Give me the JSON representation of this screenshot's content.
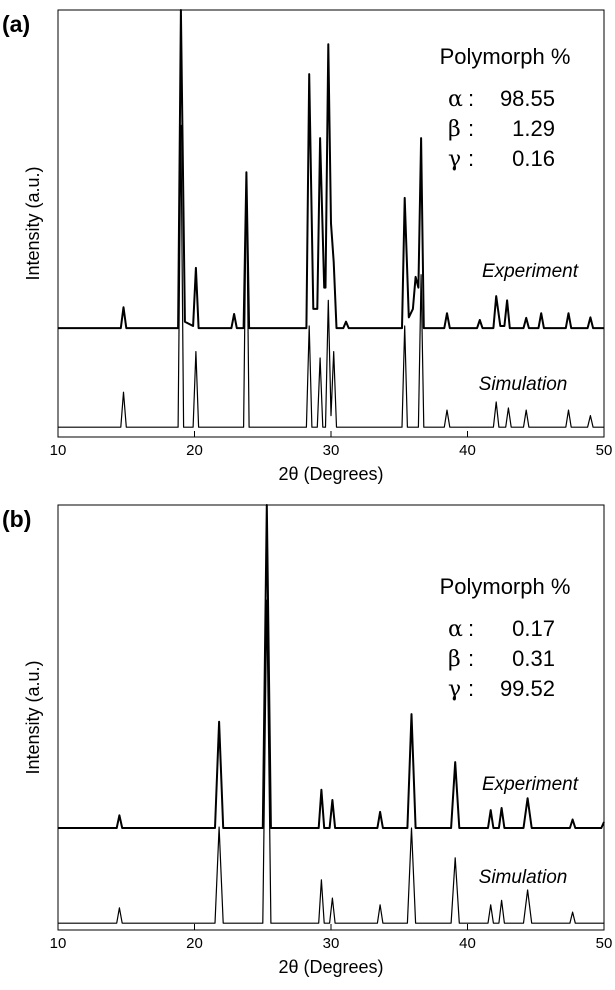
{
  "chart_data": [
    {
      "type": "line",
      "panel_label": "(a)",
      "xlabel": "2θ (Degrees)",
      "ylabel": "Intensity (a.u.)",
      "xlim": [
        10,
        50
      ],
      "xticks": [
        10,
        20,
        30,
        40,
        50
      ],
      "ylim": [
        0,
        100
      ],
      "annotation": {
        "title": "Polymorph %",
        "rows": [
          {
            "symbol": "α",
            "value": 98.55
          },
          {
            "symbol": "β",
            "value": 1.29
          },
          {
            "symbol": "γ",
            "value": 0.16
          }
        ]
      },
      "series": [
        {
          "name": "Experiment",
          "color": "#000000",
          "x": [
            10,
            14.6,
            14.8,
            15.0,
            18.8,
            19.0,
            19.3,
            19.9,
            20.1,
            20.3,
            22.7,
            22.9,
            23.1,
            23.6,
            23.8,
            24.0,
            28.2,
            28.4,
            28.7,
            29.0,
            29.2,
            29.5,
            29.6,
            29.8,
            30.0,
            30.2,
            30.4,
            30.9,
            31.1,
            31.3,
            35.2,
            35.4,
            35.7,
            36.0,
            36.2,
            36.4,
            36.6,
            36.8,
            38.3,
            38.5,
            38.7,
            40.7,
            40.9,
            41.1,
            41.9,
            42.1,
            42.4,
            42.7,
            42.9,
            43.1,
            44.1,
            44.3,
            44.5,
            45.2,
            45.4,
            45.6,
            47.2,
            47.4,
            47.6,
            48.8,
            49.0,
            49.2,
            50
          ],
          "values": [
            25.5,
            25.5,
            30.4,
            25.5,
            25.5,
            100,
            27,
            26,
            39.6,
            25.5,
            25.5,
            28.8,
            25.5,
            25.5,
            62,
            25.5,
            25.5,
            85,
            30,
            30,
            70,
            35,
            35,
            92,
            50,
            41,
            25.5,
            25.5,
            27,
            25.5,
            25.5,
            56,
            28,
            30,
            37.5,
            35,
            70,
            25.5,
            25.5,
            29,
            25.5,
            25.5,
            27.4,
            25.5,
            25.5,
            33,
            26,
            26,
            32,
            25.5,
            25.5,
            27.9,
            25.5,
            25.5,
            29,
            25.5,
            25.5,
            29,
            25.5,
            25.5,
            28,
            25.5,
            25.5
          ]
        },
        {
          "name": "Simulation",
          "color": "#000000",
          "x": [
            10,
            14.6,
            14.8,
            15.0,
            18.8,
            19.0,
            19.2,
            19.9,
            20.1,
            20.3,
            23.6,
            23.8,
            24.0,
            28.2,
            28.4,
            28.6,
            29.0,
            29.2,
            29.4,
            29.6,
            29.8,
            30.0,
            30.2,
            30.4,
            35.2,
            35.4,
            35.6,
            36.4,
            36.6,
            36.8,
            38.3,
            38.5,
            38.7,
            41.9,
            42.1,
            42.3,
            42.8,
            43.0,
            43.2,
            44.1,
            44.3,
            44.5,
            47.2,
            47.4,
            47.6,
            48.8,
            49.0,
            49.2,
            50
          ],
          "values": [
            2.3,
            2.3,
            10.5,
            2.3,
            2.3,
            73,
            2.3,
            2.3,
            20,
            2.3,
            2.3,
            61,
            2.3,
            2.3,
            26,
            2.3,
            2.3,
            18.5,
            2.3,
            2.3,
            32,
            5,
            20,
            2.3,
            2.3,
            26,
            2.3,
            2.3,
            38,
            2.3,
            2.3,
            6.3,
            2.3,
            2.3,
            8.2,
            2.3,
            2.3,
            6.8,
            2.3,
            2.3,
            6.3,
            2.3,
            2.3,
            6.3,
            2.3,
            2.3,
            5,
            2.3,
            2.3
          ]
        }
      ]
    },
    {
      "type": "line",
      "panel_label": "(b)",
      "xlabel": "2θ (Degrees)",
      "ylabel": "Intensity (a.u.)",
      "xlim": [
        10,
        50
      ],
      "xticks": [
        10,
        20,
        30,
        40,
        50
      ],
      "ylim": [
        0,
        100
      ],
      "annotation": {
        "title": "Polymorph %",
        "rows": [
          {
            "symbol": "α",
            "value": 0.17
          },
          {
            "symbol": "β",
            "value": 0.31
          },
          {
            "symbol": "γ",
            "value": 99.52
          }
        ]
      },
      "series": [
        {
          "name": "Experiment",
          "color": "#000000",
          "x": [
            10,
            14.3,
            14.5,
            14.7,
            21.5,
            21.8,
            22.1,
            25.0,
            25.3,
            25.6,
            29.1,
            29.3,
            29.5,
            29.9,
            30.1,
            30.3,
            33.4,
            33.6,
            33.8,
            35.6,
            35.9,
            36.2,
            38.8,
            39.1,
            39.4,
            41.5,
            41.7,
            41.9,
            42.3,
            42.5,
            42.7,
            44.1,
            44.4,
            44.7,
            47.5,
            47.7,
            47.9,
            49.8,
            50
          ],
          "values": [
            24,
            24,
            27,
            24,
            24,
            49,
            24,
            24,
            100,
            24,
            24,
            33,
            24,
            24,
            30.6,
            24,
            24,
            27.8,
            24,
            24,
            50.8,
            24,
            24,
            39.5,
            24,
            24,
            28.2,
            24,
            24,
            28.7,
            24,
            24,
            31,
            24,
            24,
            26,
            24,
            24,
            25.4
          ]
        },
        {
          "name": "Simulation",
          "color": "#000000",
          "x": [
            10,
            14.3,
            14.5,
            14.7,
            21.5,
            21.8,
            22.1,
            25.0,
            25.3,
            25.6,
            29.1,
            29.3,
            29.5,
            29.9,
            30.1,
            30.3,
            33.4,
            33.6,
            33.8,
            35.6,
            35.9,
            36.2,
            38.8,
            39.1,
            39.4,
            41.5,
            41.7,
            41.9,
            42.3,
            42.5,
            42.7,
            44.1,
            44.4,
            44.7,
            47.5,
            47.7,
            47.9,
            50
          ],
          "values": [
            1.6,
            1.6,
            5.2,
            1.6,
            1.6,
            24.2,
            1.6,
            1.6,
            77.6,
            1.6,
            1.6,
            11.8,
            1.6,
            1.6,
            7.5,
            1.6,
            1.6,
            5.9,
            1.6,
            1.6,
            24,
            1.6,
            1.6,
            17,
            1.6,
            1.6,
            5.9,
            1.6,
            1.6,
            7,
            1.6,
            1.6,
            9.4,
            1.6,
            1.6,
            4.2,
            1.6,
            1.6
          ]
        }
      ]
    }
  ]
}
